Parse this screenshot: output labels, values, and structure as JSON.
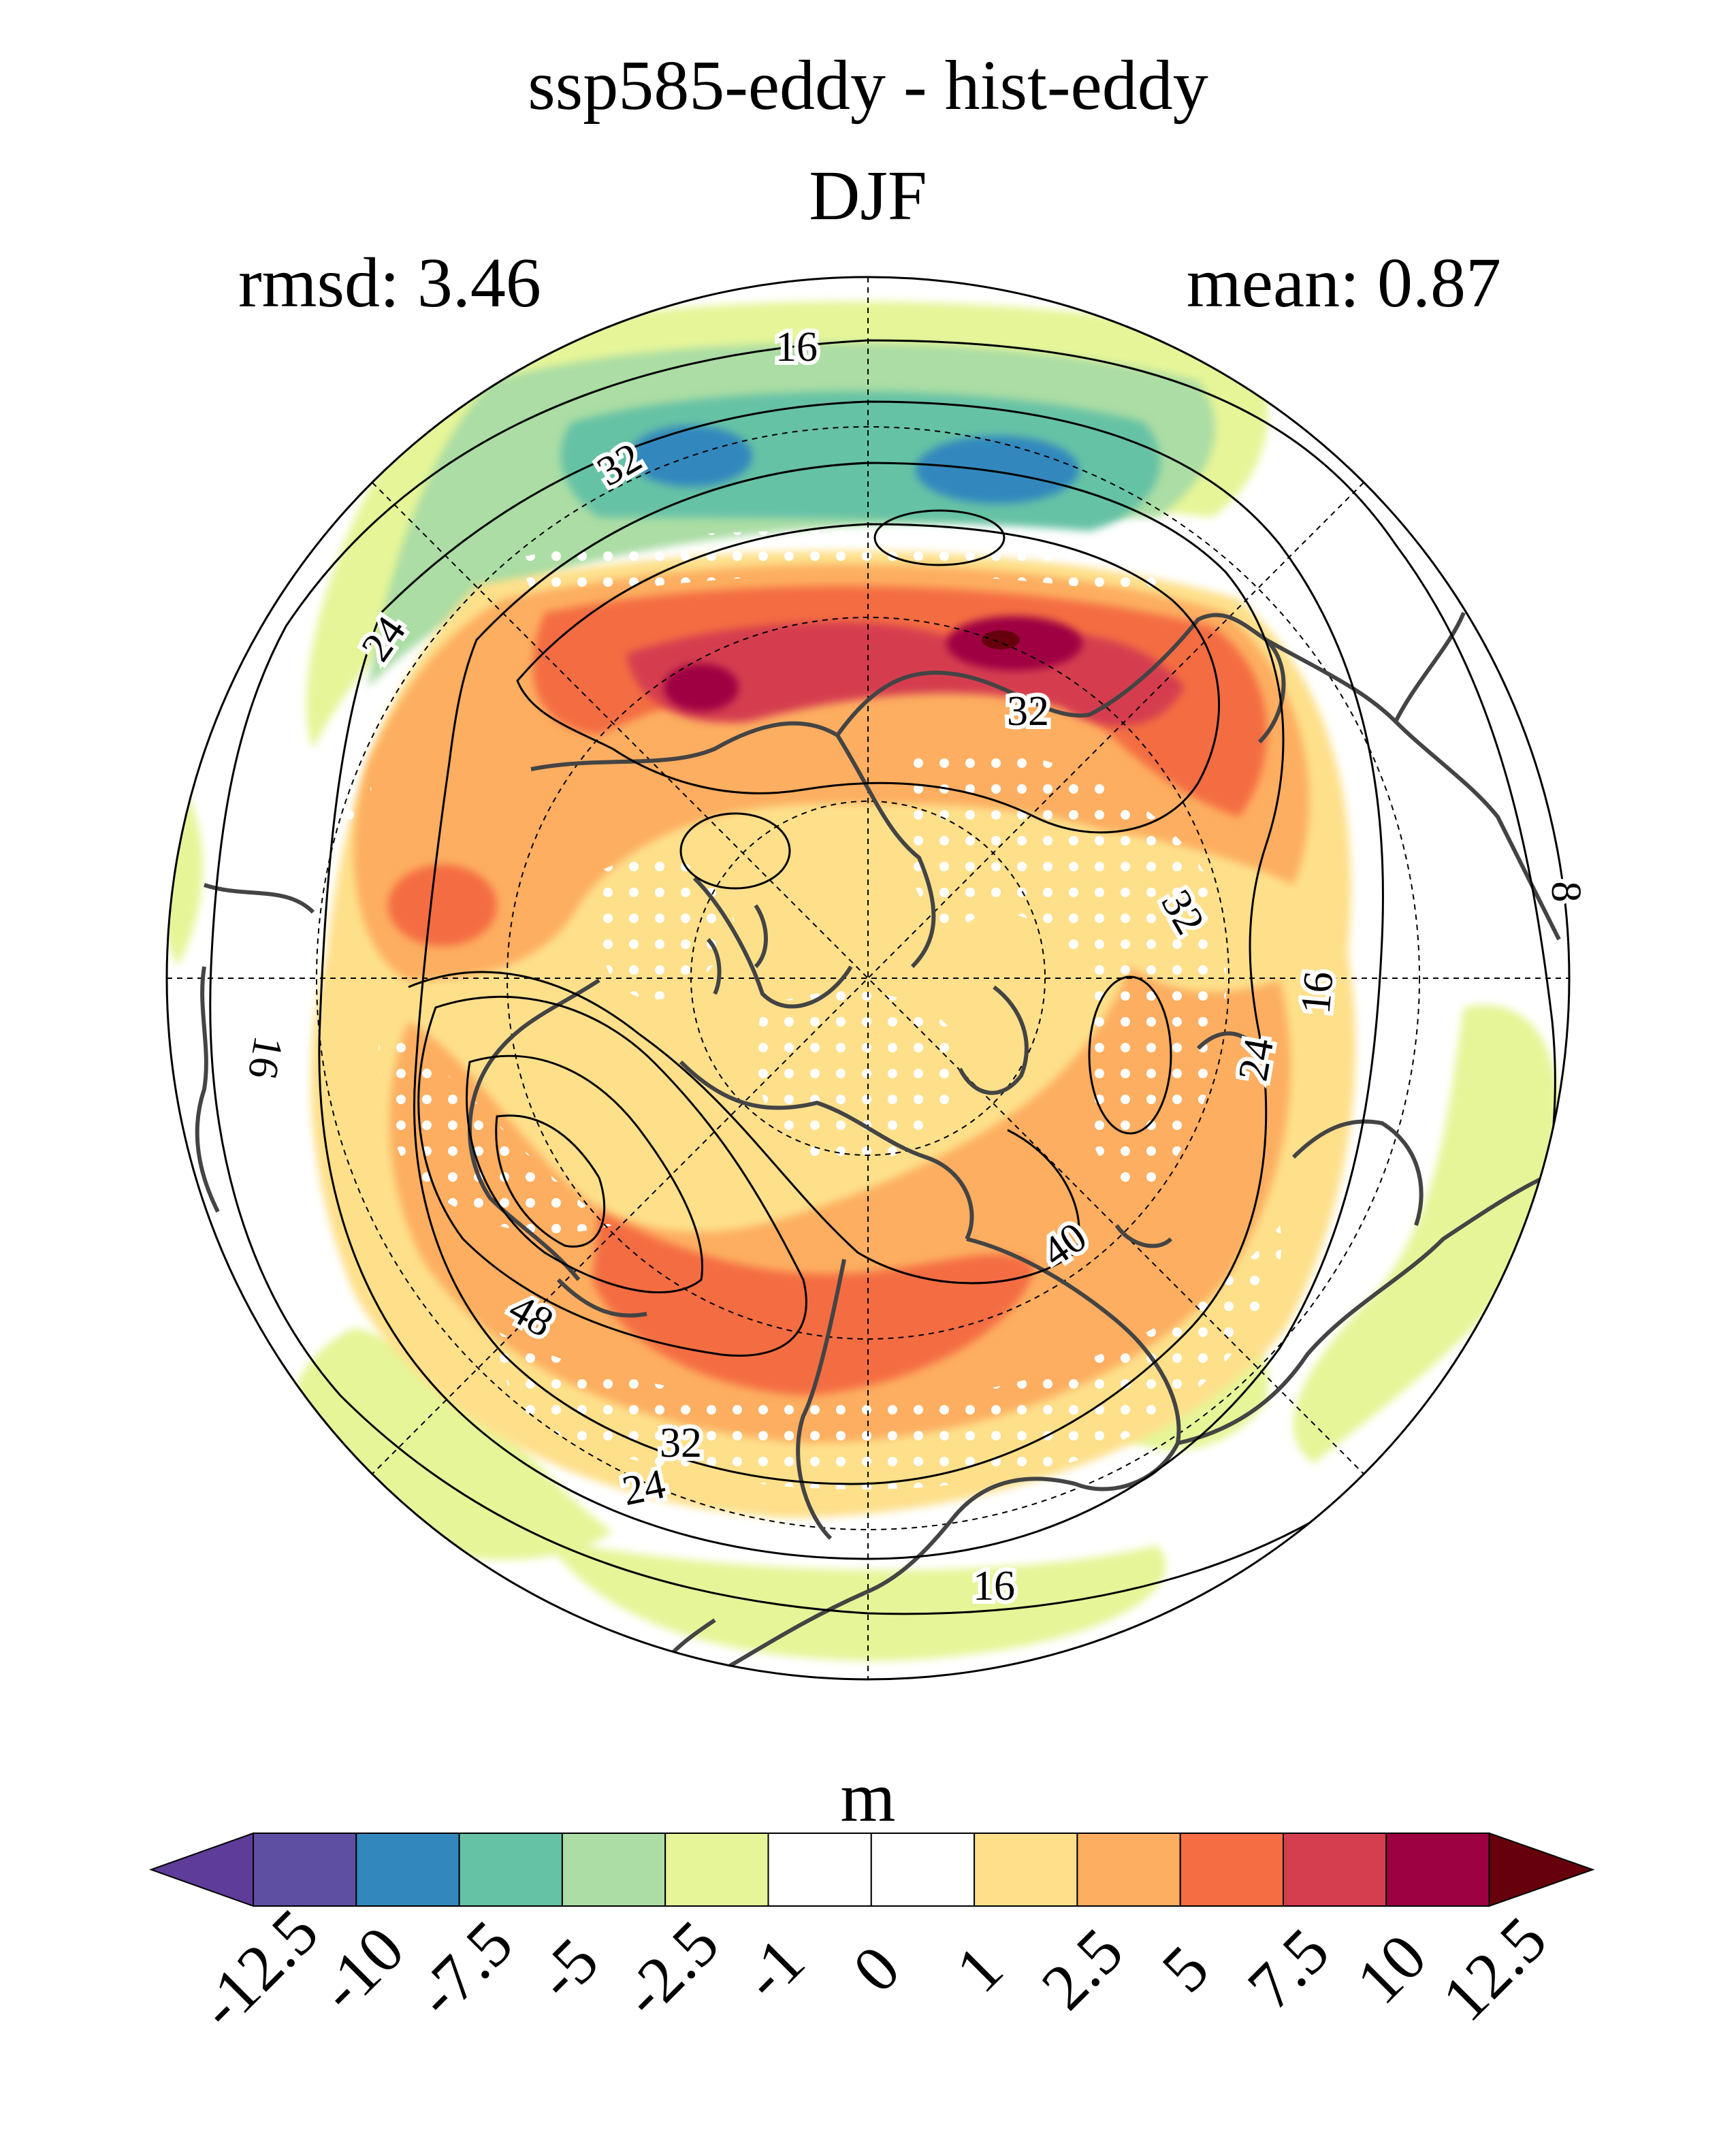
{
  "title": "ssp585-eddy - hist-eddy",
  "subtitle": "DJF",
  "stats": {
    "left": "rmsd: 3.46",
    "right": "mean: 0.87"
  },
  "contour_labels": [
    "16",
    "32",
    "24",
    "32",
    "8",
    "32",
    "16",
    "24",
    "16",
    "40",
    "48",
    "32",
    "24",
    "16"
  ],
  "colorbar": {
    "unit": "m",
    "tick_labels": [
      "-12.5",
      "-10",
      "-7.5",
      "-5",
      "-2.5",
      "-1",
      "0",
      "1",
      "2.5",
      "5",
      "7.5",
      "10",
      "12.5"
    ],
    "colors": [
      "#5e3c99",
      "#5e4fa2",
      "#3288bd",
      "#66c2a5",
      "#abdda4",
      "#e6f598",
      "#ffffff",
      "#ffffff",
      "#fee08b",
      "#fdae61",
      "#f46d43",
      "#d53e4f",
      "#9e0142",
      "#67000d"
    ]
  }
}
